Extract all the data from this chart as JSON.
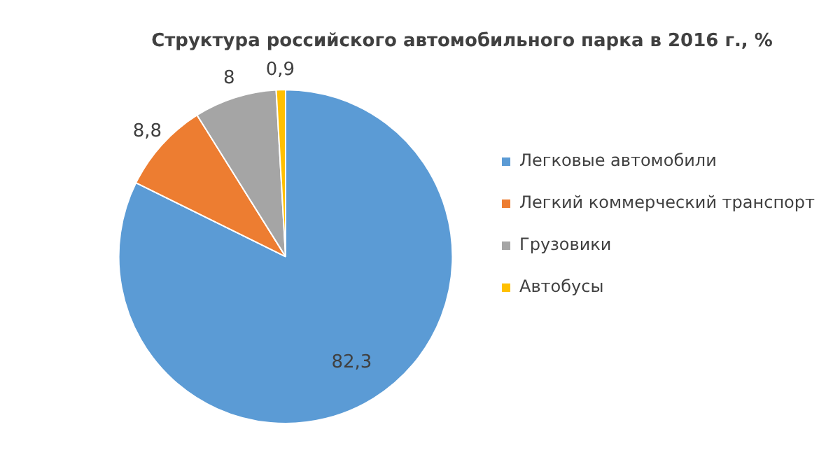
{
  "chart_data": {
    "type": "pie",
    "title": "Структура российского автомобильного парка в 2016 г., %",
    "categories": [
      "Легковые автомобили",
      "Легкий коммерческий транспорт",
      "Грузовики",
      "Автобусы"
    ],
    "values": [
      82.3,
      8.8,
      8,
      0.9
    ],
    "value_labels": [
      "82,3",
      "8,8",
      "8",
      "0,9"
    ],
    "colors": [
      "#5b9bd5",
      "#ed7d31",
      "#a5a5a5",
      "#ffc000"
    ],
    "legend": "right"
  }
}
